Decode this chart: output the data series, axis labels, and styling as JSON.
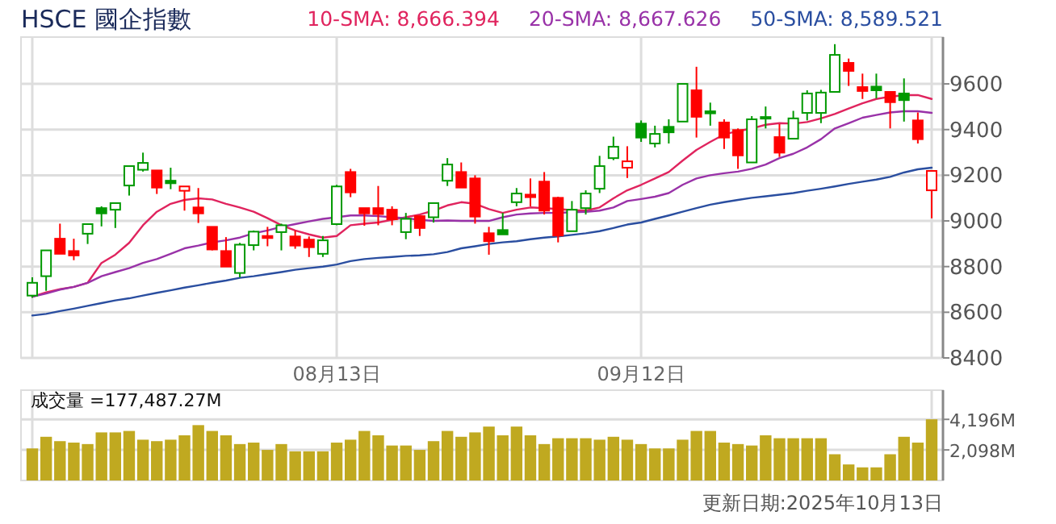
{
  "chart_data": [
    {
      "type": "candlestick",
      "title": "HSCE 國企指數",
      "categories": [
        null,
        null,
        null,
        null,
        null,
        null,
        null,
        null,
        null,
        null,
        null,
        null,
        null,
        null,
        null,
        null,
        null,
        null,
        null,
        null,
        null,
        null,
        "08月13日",
        null,
        null,
        null,
        null,
        null,
        null,
        null,
        null,
        null,
        null,
        null,
        null,
        null,
        null,
        null,
        null,
        null,
        null,
        null,
        null,
        null,
        "09月12日",
        null,
        null,
        null,
        null,
        null,
        null,
        null,
        null,
        null,
        null,
        null,
        null,
        null,
        null,
        null,
        null,
        null,
        null,
        null,
        null,
        null
      ],
      "ohlc": [
        [
          8673,
          8753,
          8664,
          8729
        ],
        [
          8758,
          8871,
          8694,
          8871
        ],
        [
          8922,
          8988,
          8856,
          8856
        ],
        [
          8868,
          8922,
          8828,
          8849
        ],
        [
          8944,
          8986,
          8899,
          8986
        ],
        [
          9056,
          9064,
          8976,
          9033
        ],
        [
          9049,
          9078,
          8969,
          9078
        ],
        [
          9155,
          9240,
          9111,
          9240
        ],
        [
          9224,
          9299,
          9216,
          9254
        ],
        [
          9221,
          9221,
          9118,
          9146
        ],
        [
          9176,
          9233,
          9139,
          9165
        ],
        [
          9132,
          9151,
          9045,
          9151
        ],
        [
          9059,
          9144,
          8991,
          9033
        ],
        [
          8974,
          8974,
          8871,
          8875
        ],
        [
          8868,
          8929,
          8800,
          8800
        ],
        [
          8772,
          8904,
          8753,
          8896
        ],
        [
          8894,
          8958,
          8871,
          8953
        ],
        [
          8934,
          8974,
          8889,
          8925
        ],
        [
          8951,
          8988,
          8871,
          8981
        ],
        [
          8932,
          8958,
          8878,
          8892
        ],
        [
          8918,
          8932,
          8842,
          8885
        ],
        [
          8856,
          8934,
          8842,
          8915
        ],
        [
          8986,
          9158,
          8981,
          9151
        ],
        [
          9214,
          9228,
          9104,
          9125
        ],
        [
          9056,
          9056,
          8979,
          9033
        ],
        [
          9056,
          9153,
          8981,
          9030
        ],
        [
          9049,
          9064,
          8981,
          9007
        ],
        [
          8951,
          9035,
          8920,
          9009
        ],
        [
          9021,
          9021,
          8934,
          8969
        ],
        [
          9016,
          9078,
          8993,
          9078
        ],
        [
          9176,
          9275,
          9153,
          9247
        ],
        [
          9214,
          9256,
          9146,
          9146
        ],
        [
          9186,
          9200,
          8988,
          9019
        ],
        [
          8946,
          8974,
          8852,
          8911
        ],
        [
          8960,
          9035,
          8941,
          8941
        ],
        [
          9082,
          9144,
          9064,
          9120
        ],
        [
          9115,
          9186,
          9064,
          9104
        ],
        [
          9172,
          9214,
          9028,
          9045
        ],
        [
          9101,
          9106,
          8906,
          8936
        ],
        [
          8955,
          9087,
          8955,
          9049
        ],
        [
          9056,
          9134,
          9028,
          9120
        ],
        [
          9141,
          9285,
          9122,
          9240
        ],
        [
          9275,
          9369,
          9266,
          9325
        ],
        [
          9233,
          9327,
          9188,
          9261
        ],
        [
          9426,
          9440,
          9346,
          9365
        ],
        [
          9339,
          9417,
          9322,
          9381
        ],
        [
          9412,
          9445,
          9339,
          9388
        ],
        [
          9435,
          9600,
          9435,
          9600
        ],
        [
          9572,
          9675,
          9365,
          9456
        ],
        [
          9480,
          9518,
          9417,
          9471
        ],
        [
          9431,
          9445,
          9315,
          9365
        ],
        [
          9398,
          9405,
          9228,
          9287
        ],
        [
          9256,
          9459,
          9256,
          9445
        ],
        [
          9455,
          9501,
          9405,
          9448
        ],
        [
          9367,
          9424,
          9280,
          9299
        ],
        [
          9360,
          9482,
          9360,
          9449
        ],
        [
          9473,
          9572,
          9440,
          9558
        ],
        [
          9473,
          9574,
          9428,
          9562
        ],
        [
          9565,
          9774,
          9565,
          9727
        ],
        [
          9692,
          9711,
          9591,
          9657
        ],
        [
          9586,
          9645,
          9534,
          9569
        ],
        [
          9588,
          9645,
          9536,
          9572
        ],
        [
          9565,
          9565,
          9405,
          9520
        ],
        [
          9558,
          9624,
          9435,
          9529
        ],
        [
          9440,
          9475,
          9339,
          9358
        ],
        [
          9134,
          9219,
          9012,
          9219
        ]
      ],
      "colors": [
        "#009900",
        "#009900",
        "#ff0000",
        "#ff0000",
        "#009900",
        "#009900",
        "#009900",
        "#009900",
        "#009900",
        "#ff0000",
        "#009900",
        "#ff0000",
        "#ff0000",
        "#ff0000",
        "#ff0000",
        "#009900",
        "#009900",
        "#ff0000",
        "#009900",
        "#ff0000",
        "#ff0000",
        "#009900",
        "#009900",
        "#ff0000",
        "#ff0000",
        "#ff0000",
        "#ff0000",
        "#009900",
        "#ff0000",
        "#009900",
        "#009900",
        "#ff0000",
        "#ff0000",
        "#ff0000",
        "#009900",
        "#009900",
        "#ff0000",
        "#ff0000",
        "#ff0000",
        "#009900",
        "#009900",
        "#009900",
        "#009900",
        "#ff0000",
        "#009900",
        "#009900",
        "#009900",
        "#009900",
        "#ff0000",
        "#009900",
        "#ff0000",
        "#ff0000",
        "#009900",
        "#009900",
        "#ff0000",
        "#009900",
        "#009900",
        "#009900",
        "#009900",
        "#ff0000",
        "#ff0000",
        "#009900",
        "#ff0000",
        "#009900",
        "#ff0000",
        "#ff0000"
      ],
      "series": [
        {
          "name": "10-SMA: 8,666.394",
          "type": "line",
          "color": "#e0245e",
          "values": [
            8668,
            8687,
            8701,
            8711,
            8729,
            8816,
            8852,
            8904,
            8981,
            9040,
            9075,
            9092,
            9099,
            9094,
            9075,
            9059,
            9040,
            9012,
            8981,
            8958,
            8941,
            8927,
            8934,
            8981,
            8988,
            8993,
            9005,
            9016,
            9028,
            9045,
            9068,
            9082,
            9075,
            9052,
            9035,
            9049,
            9059,
            9056,
            9052,
            9047,
            9045,
            9059,
            9099,
            9134,
            9158,
            9186,
            9214,
            9264,
            9311,
            9346,
            9379,
            9393,
            9405,
            9421,
            9428,
            9426,
            9433,
            9449,
            9468,
            9492,
            9515,
            9534,
            9544,
            9551,
            9551,
            9534
          ]
        },
        {
          "name": "20-SMA: 8,667.626",
          "type": "line",
          "color": "#9932a8",
          "values": [
            8668,
            8682,
            8699,
            8711,
            8729,
            8758,
            8776,
            8793,
            8816,
            8833,
            8856,
            8880,
            8892,
            8906,
            8915,
            8927,
            8946,
            8958,
            8974,
            8986,
            8998,
            9009,
            9016,
            9024,
            9024,
            9021,
            9016,
            9012,
            9005,
            9000,
            9002,
            9000,
            9000,
            9000,
            9016,
            9028,
            9033,
            9035,
            9035,
            9038,
            9040,
            9045,
            9059,
            9087,
            9096,
            9106,
            9122,
            9158,
            9186,
            9200,
            9209,
            9216,
            9228,
            9247,
            9275,
            9294,
            9322,
            9358,
            9405,
            9428,
            9452,
            9464,
            9475,
            9480,
            9480,
            9473
          ]
        },
        {
          "name": "50-SMA: 8,589.521",
          "type": "line",
          "color": "#2a4ea0",
          "values": [
            8586,
            8593,
            8605,
            8616,
            8628,
            8640,
            8652,
            8661,
            8673,
            8685,
            8696,
            8708,
            8718,
            8729,
            8739,
            8751,
            8758,
            8767,
            8776,
            8786,
            8793,
            8800,
            8809,
            8824,
            8833,
            8838,
            8842,
            8847,
            8849,
            8854,
            8864,
            8880,
            8889,
            8899,
            8906,
            8911,
            8920,
            8927,
            8932,
            8939,
            8946,
            8955,
            8969,
            8984,
            8993,
            9009,
            9024,
            9040,
            9056,
            9071,
            9082,
            9092,
            9101,
            9108,
            9115,
            9122,
            9132,
            9141,
            9151,
            9162,
            9172,
            9181,
            9193,
            9212,
            9226,
            9233
          ]
        }
      ],
      "ylim": [
        8400,
        9805
      ],
      "yticks": [
        8400,
        8600,
        8800,
        9000,
        9200,
        9400,
        9600
      ],
      "grid": true,
      "legend": "top right"
    },
    {
      "type": "bar",
      "categories": [
        null,
        null,
        null,
        null,
        null,
        null,
        null,
        null,
        null,
        null,
        null,
        null,
        null,
        null,
        null,
        null,
        null,
        null,
        null,
        null,
        null,
        null,
        null,
        null,
        null,
        null,
        null,
        null,
        null,
        null,
        null,
        null,
        null,
        null,
        null,
        null,
        null,
        null,
        null,
        null,
        null,
        null,
        null,
        null,
        null,
        null,
        null,
        null,
        null,
        null,
        null,
        null,
        null,
        null,
        null,
        null,
        null,
        null,
        null,
        null,
        null,
        null,
        null,
        null,
        null,
        null
      ],
      "values": [
        2200,
        3000,
        2700,
        2600,
        2500,
        3300,
        3300,
        3400,
        2800,
        2700,
        2800,
        3100,
        3800,
        3400,
        3100,
        2500,
        2600,
        2100,
        2500,
        2000,
        2000,
        2000,
        2600,
        2800,
        3400,
        3100,
        2400,
        2400,
        2100,
        2700,
        3400,
        3000,
        3300,
        3700,
        3100,
        3700,
        3100,
        2500,
        2900,
        2900,
        2900,
        2800,
        3000,
        2800,
        2500,
        2200,
        2200,
        2800,
        3400,
        3400,
        2600,
        2500,
        2400,
        3100,
        2900,
        2900,
        2900,
        2900,
        1800,
        1100,
        900,
        900,
        1800,
        3000,
        2600,
        4200
      ],
      "color": "#c0a920",
      "ylim": [
        0,
        6200
      ],
      "yticks": [
        {
          "value": 2098,
          "label": "2,098M"
        },
        {
          "value": 4196,
          "label": "4,196M"
        }
      ],
      "grid": true,
      "annotations": [
        "成交量 =177,487.27M",
        "更新日期:2025年10月13日"
      ]
    }
  ]
}
